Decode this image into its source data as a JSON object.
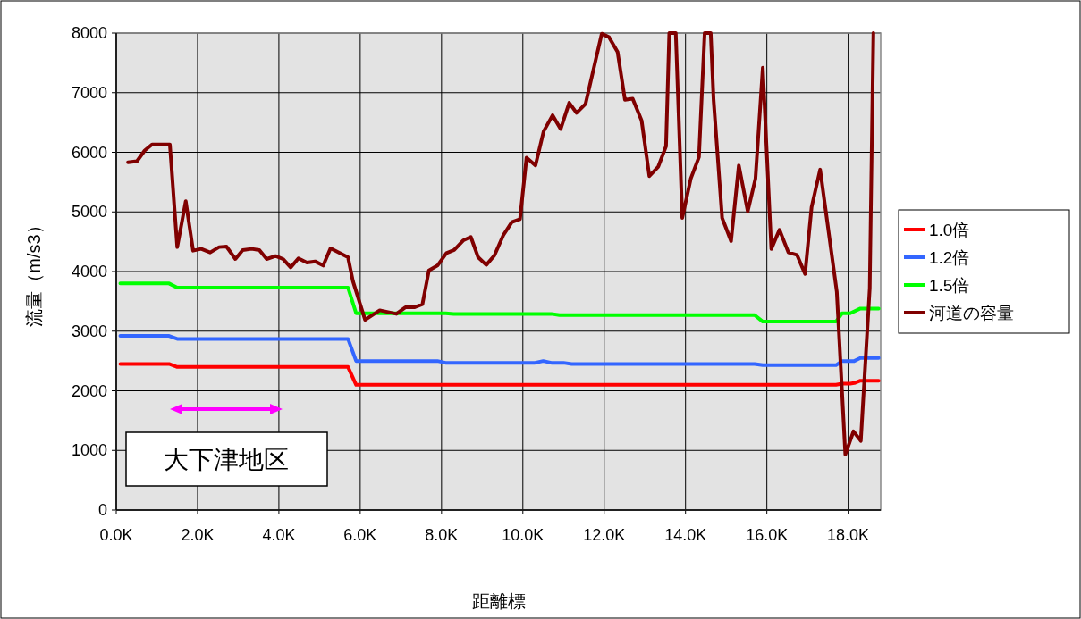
{
  "chart_data": {
    "type": "line",
    "xlabel": "距離標",
    "ylabel": "流量（m/s3）",
    "xlim": [
      0,
      18.8
    ],
    "ylim": [
      0,
      8000
    ],
    "xticks": [
      {
        "value": 0,
        "label": "0.0K"
      },
      {
        "value": 2,
        "label": "2.0K"
      },
      {
        "value": 4,
        "label": "4.0K"
      },
      {
        "value": 6,
        "label": "6.0K"
      },
      {
        "value": 8,
        "label": "8.0K"
      },
      {
        "value": 10,
        "label": "10.0K"
      },
      {
        "value": 12,
        "label": "12.0K"
      },
      {
        "value": 14,
        "label": "14.0K"
      },
      {
        "value": 16,
        "label": "16.0K"
      },
      {
        "value": 18,
        "label": "18.0K"
      }
    ],
    "yticks": [
      0,
      1000,
      2000,
      3000,
      4000,
      5000,
      6000,
      7000,
      8000
    ],
    "grid": true,
    "legend": "right",
    "annotations": [
      "大下津地区"
    ],
    "series": [
      {
        "name": "1.0倍",
        "color": "#ff0000",
        "x": [
          0.1,
          1.3,
          1.5,
          5.7,
          5.9,
          17.7,
          17.85,
          18.05,
          18.15,
          18.3,
          18.75
        ],
        "values": [
          2450,
          2450,
          2400,
          2400,
          2100,
          2100,
          2120,
          2120,
          2130,
          2170,
          2170
        ]
      },
      {
        "name": "1.2倍",
        "color": "#3366ff",
        "x": [
          0.1,
          1.3,
          1.5,
          5.7,
          5.9,
          7.9,
          8.1,
          10.3,
          10.5,
          10.7,
          11.0,
          11.2,
          15.7,
          15.9,
          17.7,
          17.85,
          18.15,
          18.3,
          18.75
        ],
        "values": [
          2920,
          2920,
          2870,
          2870,
          2500,
          2500,
          2470,
          2470,
          2500,
          2470,
          2470,
          2450,
          2450,
          2430,
          2430,
          2500,
          2500,
          2550,
          2550
        ]
      },
      {
        "name": "1.5倍",
        "color": "#00ff00",
        "x": [
          0.1,
          1.3,
          1.5,
          5.7,
          5.9,
          8.1,
          8.3,
          10.7,
          10.9,
          15.7,
          15.9,
          17.7,
          17.85,
          18.05,
          18.3,
          18.75
        ],
        "values": [
          3800,
          3800,
          3730,
          3730,
          3300,
          3300,
          3290,
          3290,
          3270,
          3270,
          3160,
          3160,
          3300,
          3300,
          3380,
          3380
        ]
      },
      {
        "name": "河道の容量",
        "color": "#800000",
        "x": [
          0.29,
          0.51,
          0.7,
          0.88,
          1.32,
          1.5,
          1.71,
          1.89,
          2.09,
          2.31,
          2.53,
          2.71,
          2.93,
          3.11,
          3.33,
          3.52,
          3.7,
          3.92,
          4.1,
          4.29,
          4.48,
          4.69,
          4.89,
          5.09,
          5.27,
          5.7,
          5.82,
          6.12,
          6.48,
          6.89,
          7.11,
          7.33,
          7.53,
          7.69,
          7.9,
          8.12,
          8.31,
          8.53,
          8.72,
          8.9,
          9.1,
          9.3,
          9.52,
          9.73,
          9.93,
          10.09,
          10.31,
          10.51,
          10.73,
          10.93,
          11.14,
          11.32,
          11.54,
          11.94,
          12.12,
          12.33,
          12.51,
          12.7,
          12.92,
          13.11,
          13.33,
          13.52,
          13.6,
          13.76,
          13.92,
          14.13,
          14.33,
          14.47,
          14.62,
          14.69,
          14.9,
          15.12,
          15.31,
          15.53,
          15.72,
          15.9,
          16.11,
          16.31,
          16.53,
          16.74,
          16.94,
          17.1,
          17.31,
          17.72,
          17.93,
          18.13,
          18.31,
          18.53,
          18.62
        ],
        "values": [
          5830,
          5850,
          6030,
          6130,
          6130,
          4410,
          5180,
          4350,
          4380,
          4320,
          4410,
          4420,
          4210,
          4360,
          4380,
          4360,
          4210,
          4260,
          4210,
          4070,
          4220,
          4150,
          4170,
          4100,
          4390,
          4240,
          3840,
          3190,
          3350,
          3290,
          3400,
          3400,
          3450,
          4020,
          4100,
          4310,
          4360,
          4520,
          4580,
          4240,
          4110,
          4270,
          4610,
          4830,
          4880,
          5910,
          5780,
          6350,
          6620,
          6390,
          6830,
          6660,
          6810,
          7990,
          7930,
          7680,
          6880,
          6900,
          6530,
          5600,
          5760,
          6100,
          8000,
          8000,
          4900,
          5560,
          5920,
          8000,
          8000,
          6880,
          4900,
          4510,
          5780,
          5010,
          5560,
          7420,
          4380,
          4700,
          4320,
          4280,
          3960,
          5080,
          5710,
          3660,
          930,
          1320,
          1160,
          3720,
          8000
        ]
      }
    ]
  }
}
